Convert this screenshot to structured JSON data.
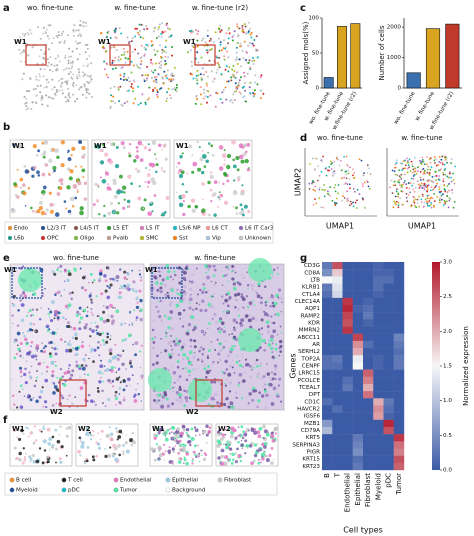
{
  "panels": {
    "a": {
      "label": "a",
      "titles": [
        "wo. fine-tune",
        "w. fine-tune",
        "w. fine-tune (r2)"
      ],
      "window": "W1"
    },
    "b": {
      "label": "b",
      "window": "W1",
      "legend": [
        {
          "name": "Endo",
          "color": "#f28e2b"
        },
        {
          "name": "L2/3 IT",
          "color": "#1f4e9c"
        },
        {
          "name": "L4/5 IT",
          "color": "#8c564b"
        },
        {
          "name": "L5 ET",
          "color": "#2ca02c"
        },
        {
          "name": "L5 IT",
          "color": "#e377c2"
        },
        {
          "name": "L5/6 NP",
          "color": "#17becf"
        },
        {
          "name": "L6 CT",
          "color": "#ff9896"
        },
        {
          "name": "L6 IT Car3",
          "color": "#9467bd"
        },
        {
          "name": "L6b",
          "color": "#1a9e8f"
        },
        {
          "name": "OPC",
          "color": "#d62728"
        },
        {
          "name": "Oligo",
          "color": "#7fbf3f"
        },
        {
          "name": "Pvalb",
          "color": "#c49c94"
        },
        {
          "name": "SMC",
          "color": "#bcbd22"
        },
        {
          "name": "Sst",
          "color": "#ff7f0e"
        },
        {
          "name": "Vip",
          "color": "#aec7e8"
        },
        {
          "name": "Unknown",
          "color": "#c7c7c7"
        }
      ]
    },
    "c": {
      "label": "c"
    },
    "d": {
      "label": "d",
      "titles": [
        "wo. fine-tune",
        "w. fine-tune"
      ],
      "xlabel": "UMAP1",
      "ylabel": "UMAP2"
    },
    "e": {
      "label": "e",
      "titles": [
        "wo. fine-tune",
        "w. fine-tune"
      ],
      "windows": [
        "W1",
        "W2"
      ]
    },
    "f": {
      "label": "f",
      "windows": [
        "W1",
        "W2"
      ],
      "legend": [
        {
          "name": "B cell",
          "color": "#f28e2b"
        },
        {
          "name": "T cell",
          "color": "#1f1f1f"
        },
        {
          "name": "Endothelial",
          "color": "#e377c2"
        },
        {
          "name": "Epithelial",
          "color": "#9ecae1"
        },
        {
          "name": "Fibroblast",
          "color": "#c7c7c7"
        },
        {
          "name": "Myeloid",
          "color": "#1f4e9c"
        },
        {
          "name": "pDC",
          "color": "#17becf"
        },
        {
          "name": "Tumor",
          "color": "#50e3a4"
        },
        {
          "name": "Background",
          "color": "#ffffff"
        }
      ]
    },
    "g": {
      "label": "g"
    }
  },
  "chart_data": [
    {
      "type": "bar",
      "ylabel": "Assigned mols(%)",
      "categories": [
        "wo. fine-tune",
        "w. fine-tune",
        "w.fine-tune (r2)"
      ],
      "values": [
        15,
        88,
        92
      ],
      "colors": [
        "#3a6fb0",
        "#d9a520",
        "#d9a520"
      ],
      "ylim": [
        0,
        100
      ],
      "yticks": [
        0,
        50,
        100
      ]
    },
    {
      "type": "bar",
      "ylabel": "Number of cells",
      "categories": [
        "wo. fine-tune",
        "w. fine-tune",
        "w.fine-tune (r2)"
      ],
      "values": [
        500,
        1950,
        2100
      ],
      "colors": [
        "#3a6fb0",
        "#d9a520",
        "#c0392b"
      ],
      "ylim": [
        0,
        2300
      ],
      "yticks": [
        0,
        1000,
        2000
      ]
    },
    {
      "type": "heatmap",
      "xlabel": "Cell types",
      "ylabel": "Genes",
      "colorbar_label": "Normalized expression",
      "columns": [
        "B",
        "T",
        "Endothelial",
        "Epithelial",
        "Fibroblast",
        "Myeloid",
        "pDC",
        "Tumor"
      ],
      "rows": [
        "CD3G",
        "CD8A",
        "LTB",
        "KLRB1",
        "CTLA4",
        "CLEC14A",
        "AQP1",
        "RAMP2",
        "KDR",
        "MMRN2",
        "ABCC11",
        "AR",
        "SERHL2",
        "TOP2A",
        "CENPF",
        "LRRC15",
        "PCOLCE",
        "TCEAL7",
        "DPT",
        "CD1C",
        "HAVCR2",
        "IGSF6",
        "MZB1",
        "CD79A",
        "KRT5",
        "SERPINA3",
        "PIGR",
        "KRT15",
        "KRT23"
      ],
      "values": [
        [
          0.3,
          2.6,
          0,
          0,
          0,
          0.1,
          0,
          0
        ],
        [
          0.5,
          1.8,
          0,
          0,
          0,
          0.1,
          0.1,
          0
        ],
        [
          1.5,
          1.4,
          0,
          0,
          0,
          0.2,
          0.2,
          0
        ],
        [
          0.3,
          1.3,
          0,
          0,
          0,
          0.2,
          0,
          0
        ],
        [
          0.2,
          1.2,
          0,
          0,
          0,
          0.1,
          0,
          0
        ],
        [
          0,
          0,
          2.8,
          0,
          0.1,
          0,
          0,
          0
        ],
        [
          0,
          0,
          2.9,
          0.1,
          0.2,
          0,
          0,
          0
        ],
        [
          0,
          0,
          2.7,
          0,
          0.3,
          0,
          0,
          0
        ],
        [
          0,
          0,
          2.6,
          0,
          0.1,
          0,
          0,
          0
        ],
        [
          0,
          0,
          2.8,
          0,
          0,
          0,
          0,
          0
        ],
        [
          0,
          0,
          0,
          2.7,
          0,
          0,
          0,
          0.4
        ],
        [
          0,
          0,
          0,
          2.2,
          0.2,
          0,
          0,
          0.3
        ],
        [
          0,
          0,
          0,
          2.0,
          0,
          0,
          0,
          0.2
        ],
        [
          0.2,
          0.3,
          0,
          1.4,
          0,
          0.1,
          0,
          0.3
        ],
        [
          0.2,
          0.2,
          0,
          1.5,
          0,
          0.1,
          0,
          0.3
        ],
        [
          0,
          0,
          0,
          0,
          2.5,
          0,
          0,
          0
        ],
        [
          0,
          0,
          0.2,
          0,
          2.3,
          0,
          0,
          0
        ],
        [
          0,
          0,
          0.3,
          0,
          2.0,
          0,
          0,
          0
        ],
        [
          0,
          0,
          0,
          0,
          2.4,
          0,
          0,
          0
        ],
        [
          0.2,
          0,
          0,
          0,
          0,
          2.0,
          0.3,
          0
        ],
        [
          0,
          0.2,
          0,
          0,
          0,
          2.2,
          0.2,
          0
        ],
        [
          0,
          0,
          0,
          0,
          0,
          2.1,
          0.1,
          0
        ],
        [
          0.6,
          0,
          0,
          0,
          0,
          0,
          2.9,
          0
        ],
        [
          0.9,
          0,
          0,
          0,
          0,
          0,
          2.6,
          0
        ],
        [
          0,
          0,
          0,
          0.3,
          0,
          0,
          0,
          2.8
        ],
        [
          0,
          0,
          0,
          0.4,
          0,
          0,
          0,
          2.4
        ],
        [
          0,
          0,
          0,
          0.5,
          0,
          0,
          0,
          2.3
        ],
        [
          0,
          0,
          0,
          0.2,
          0,
          0,
          0,
          2.6
        ],
        [
          0,
          0,
          0,
          0.3,
          0,
          0,
          0,
          2.5
        ]
      ],
      "zlim": [
        0,
        3
      ],
      "zticks": [
        {
          "value": 0,
          "label": "0.0"
        },
        {
          "value": 0.5,
          "label": "0.5"
        },
        {
          "value": 1,
          "label": "1.0"
        },
        {
          "value": 1.5,
          "label": "1.5"
        },
        {
          "value": 2,
          "label": "2.0"
        },
        {
          "value": 2.5,
          "label": "2.5"
        },
        {
          "value": 3,
          "label": "3.0"
        }
      ],
      "colormap": [
        "#3b5ba7",
        "#f7f7f7",
        "#b2182b"
      ]
    }
  ]
}
